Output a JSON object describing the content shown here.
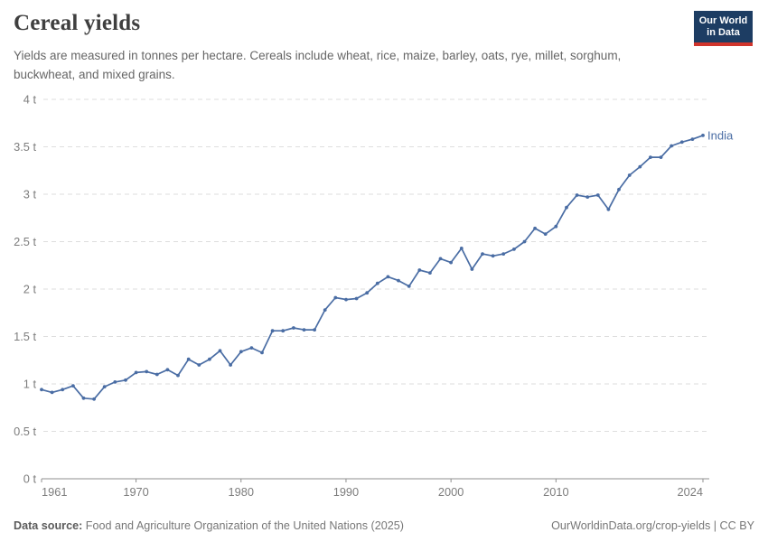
{
  "header": {
    "title": "Cereal yields",
    "subtitle": "Yields are measured in tonnes per hectare. Cereals include wheat, rice, maize, barley, oats, rye, millet, sorghum, buckwheat, and mixed grains.",
    "logo": {
      "line1": "Our World",
      "line2": "in Data"
    }
  },
  "chart_data": {
    "type": "line",
    "title": "Cereal yields",
    "ylabel": "",
    "xlabel": "",
    "unit": "t",
    "ylim": [
      0,
      4
    ],
    "xlim": [
      1961,
      2024
    ],
    "grid": true,
    "legend_position": "end-of-line-label",
    "y_ticks": [
      0,
      0.5,
      1,
      1.5,
      2,
      2.5,
      3,
      3.5,
      4
    ],
    "y_tick_suffix": " t",
    "x_ticks": [
      1961,
      1970,
      1980,
      1990,
      2000,
      2010,
      2024
    ],
    "series": [
      {
        "name": "India",
        "color": "#4a6da4",
        "x": [
          1961,
          1962,
          1963,
          1964,
          1965,
          1966,
          1967,
          1968,
          1969,
          1970,
          1971,
          1972,
          1973,
          1974,
          1975,
          1976,
          1977,
          1978,
          1979,
          1980,
          1981,
          1982,
          1983,
          1984,
          1985,
          1986,
          1987,
          1988,
          1989,
          1990,
          1991,
          1992,
          1993,
          1994,
          1995,
          1996,
          1997,
          1998,
          1999,
          2000,
          2001,
          2002,
          2003,
          2004,
          2005,
          2006,
          2007,
          2008,
          2009,
          2010,
          2011,
          2012,
          2013,
          2014,
          2015,
          2016,
          2017,
          2018,
          2019,
          2020,
          2021,
          2022,
          2023,
          2024
        ],
        "values": [
          0.94,
          0.91,
          0.94,
          0.98,
          0.85,
          0.84,
          0.97,
          1.02,
          1.04,
          1.12,
          1.13,
          1.1,
          1.15,
          1.09,
          1.26,
          1.2,
          1.26,
          1.35,
          1.2,
          1.34,
          1.38,
          1.33,
          1.56,
          1.56,
          1.59,
          1.57,
          1.57,
          1.78,
          1.91,
          1.89,
          1.9,
          1.96,
          2.06,
          2.13,
          2.09,
          2.03,
          2.2,
          2.17,
          2.32,
          2.28,
          2.43,
          2.21,
          2.37,
          2.35,
          2.37,
          2.42,
          2.5,
          2.64,
          2.58,
          2.66,
          2.86,
          2.99,
          2.97,
          2.99,
          2.84,
          3.05,
          3.2,
          3.29,
          3.39,
          3.39,
          3.51,
          3.55,
          3.58,
          3.62
        ]
      }
    ]
  },
  "footer": {
    "datasource_label": "Data source:",
    "datasource": " Food and Agriculture Organization of the United Nations (2025)",
    "credit": "OurWorldinData.org/crop-yields | CC BY"
  },
  "colors": {
    "series_blue": "#4a6da4",
    "grid": "#dedede",
    "axis_line": "#8f8f8f",
    "axis_text": "#7d7d7d",
    "logo_bg": "#1d3d63",
    "logo_accent": "#d0342c"
  }
}
